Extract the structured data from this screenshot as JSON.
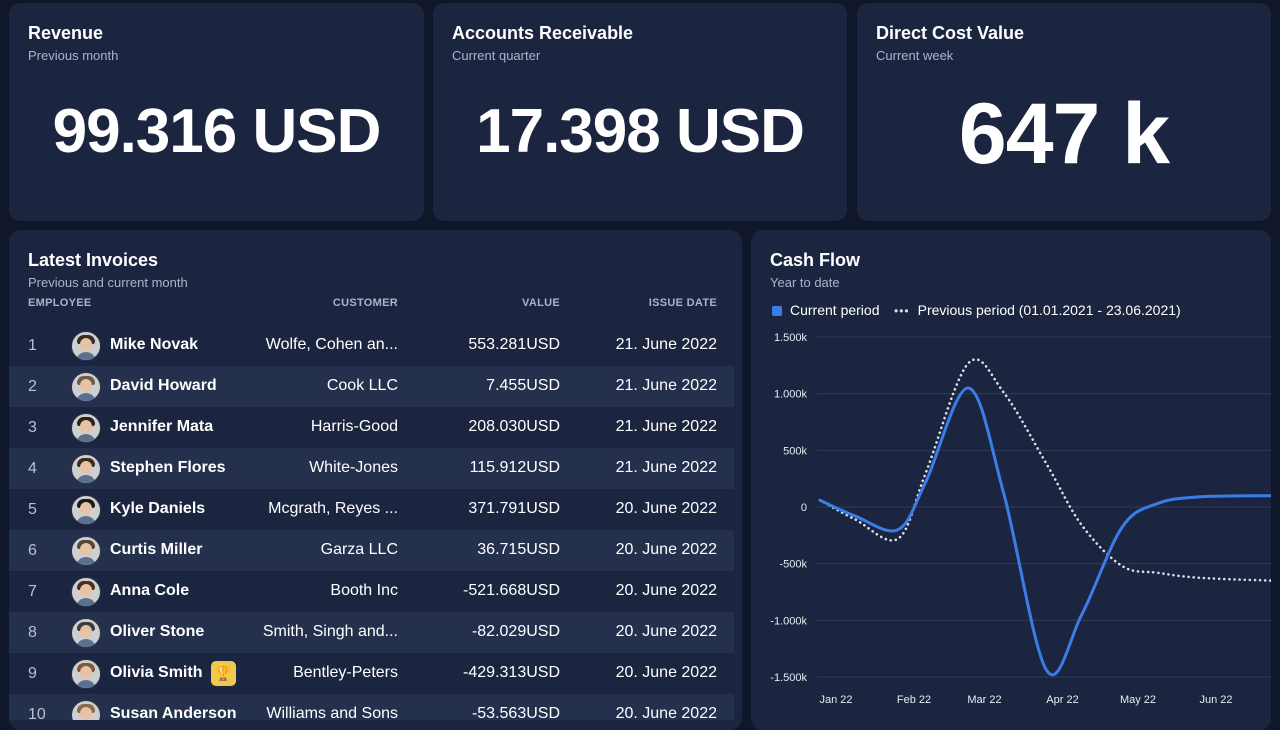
{
  "kpis": [
    {
      "title": "Revenue",
      "subtitle": "Previous month",
      "value": "99.316 USD"
    },
    {
      "title": "Accounts Receivable",
      "subtitle": "Current quarter",
      "value": "17.398 USD"
    },
    {
      "title": "Direct Cost Value",
      "subtitle": "Current week",
      "value": "647 k"
    }
  ],
  "invoices": {
    "title": "Latest Invoices",
    "subtitle": "Previous and current month",
    "columns": {
      "employee": "EMPLOYEE",
      "customer": "CUSTOMER",
      "value": "VALUE",
      "issue_date": "ISSUE DATE"
    },
    "rows": [
      {
        "num": "1",
        "name": "Mike Novak",
        "customer": "Wolfe, Cohen an...",
        "value": "553.281USD",
        "date": "21. June 2022"
      },
      {
        "num": "2",
        "name": "David Howard",
        "customer": "Cook LLC",
        "value": "7.455USD",
        "date": "21. June 2022"
      },
      {
        "num": "3",
        "name": "Jennifer Mata",
        "customer": "Harris-Good",
        "value": "208.030USD",
        "date": "21. June 2022"
      },
      {
        "num": "4",
        "name": "Stephen Flores",
        "customer": "White-Jones",
        "value": "115.912USD",
        "date": "21. June 2022"
      },
      {
        "num": "5",
        "name": "Kyle Daniels",
        "customer": "Mcgrath, Reyes ...",
        "value": "371.791USD",
        "date": "20. June 2022"
      },
      {
        "num": "6",
        "name": "Curtis Miller",
        "customer": "Garza LLC",
        "value": "36.715USD",
        "date": "20. June 2022"
      },
      {
        "num": "7",
        "name": "Anna Cole",
        "customer": "Booth Inc",
        "value": "-521.668USD",
        "date": "20. June 2022"
      },
      {
        "num": "8",
        "name": "Oliver Stone",
        "customer": "Smith, Singh and...",
        "value": "-82.029USD",
        "date": "20. June 2022"
      },
      {
        "num": "9",
        "name": "Olivia Smith",
        "customer": "Bentley-Peters",
        "value": "-429.313USD",
        "date": "20. June 2022",
        "badge_icon": "trophy-icon"
      },
      {
        "num": "10",
        "name": "Susan Anderson",
        "customer": "Williams and Sons",
        "value": "-53.563USD",
        "date": "20. June 2022"
      }
    ]
  },
  "cashflow": {
    "title": "Cash Flow",
    "subtitle": "Year to date",
    "legend": {
      "current": "Current period",
      "previous": "Previous period (01.01.2021 - 23.06.2021)"
    }
  },
  "chart_data": {
    "type": "line",
    "title": "Cash Flow",
    "subtitle": "Year to date",
    "x_ticks": [
      "Jan 22",
      "Feb 22",
      "Mar 22",
      "Apr 22",
      "May 22",
      "Jun 22"
    ],
    "y_ticks": [
      "1.500k",
      "1.000k",
      "500k",
      "0",
      "-500k",
      "-1.000k",
      "-1.500k"
    ],
    "ylim": [
      -1500000,
      1500000
    ],
    "grid": true,
    "legend_position": "top",
    "x_domain": [
      "2022-01-01",
      "2022-06-30"
    ],
    "series": [
      {
        "name": "Current period",
        "color": "#3b7de8",
        "style": "solid",
        "points": [
          {
            "x": "2022-01-01",
            "y": 60000
          },
          {
            "x": "2022-01-15",
            "y": -80000
          },
          {
            "x": "2022-02-01",
            "y": -200000
          },
          {
            "x": "2022-02-12",
            "y": 220000
          },
          {
            "x": "2022-03-01",
            "y": 1050000
          },
          {
            "x": "2022-03-15",
            "y": 120000
          },
          {
            "x": "2022-04-01",
            "y": -1440000
          },
          {
            "x": "2022-04-15",
            "y": -950000
          },
          {
            "x": "2022-05-01",
            "y": -180000
          },
          {
            "x": "2022-05-15",
            "y": 30000
          },
          {
            "x": "2022-06-01",
            "y": 90000
          },
          {
            "x": "2022-06-30",
            "y": 100000
          }
        ]
      },
      {
        "name": "Previous period (01.01.2021 - 23.06.2021)",
        "color": "#d9dfea",
        "style": "dotted",
        "points": [
          {
            "x": "2022-01-01",
            "y": 60000
          },
          {
            "x": "2022-01-15",
            "y": -110000
          },
          {
            "x": "2022-02-01",
            "y": -280000
          },
          {
            "x": "2022-02-12",
            "y": 300000
          },
          {
            "x": "2022-03-01",
            "y": 1270000
          },
          {
            "x": "2022-03-15",
            "y": 1010000
          },
          {
            "x": "2022-04-01",
            "y": 380000
          },
          {
            "x": "2022-04-15",
            "y": -160000
          },
          {
            "x": "2022-05-01",
            "y": -520000
          },
          {
            "x": "2022-05-15",
            "y": -580000
          },
          {
            "x": "2022-06-01",
            "y": -625000
          },
          {
            "x": "2022-06-30",
            "y": -650000
          }
        ]
      }
    ]
  }
}
